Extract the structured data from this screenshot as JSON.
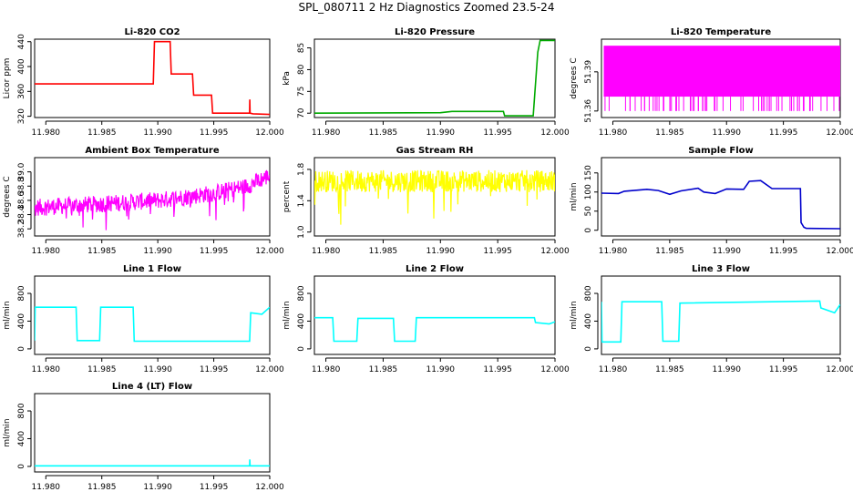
{
  "page": {
    "title": "SPL_080711  2 Hz Diagnostics Zoomed 23.5-24"
  },
  "chart_data": [
    {
      "type": "line",
      "title": "Li-820 CO2",
      "xlabel": "",
      "ylabel": "Licor ppm",
      "color": "#ff0000",
      "xlim": [
        11.979,
        12.0
      ],
      "ylim": [
        318,
        444
      ],
      "x_ticks": [
        "11.980",
        "11.985",
        "11.990",
        "11.995",
        "12.000"
      ],
      "y_ticks": [
        "320",
        "360",
        "400",
        "440"
      ],
      "series": [
        {
          "x": [
            11.979,
            11.9896,
            11.9897,
            11.9911,
            11.9912,
            11.9931,
            11.9932,
            11.9948,
            11.9949,
            11.9982,
            11.99822,
            11.99824,
            11.9985,
            12.0
          ],
          "y": [
            372,
            372,
            440,
            440,
            388,
            388,
            354,
            354,
            325,
            325,
            347,
            325,
            324,
            323
          ]
        }
      ]
    },
    {
      "type": "line",
      "title": "Li-820 Pressure",
      "xlabel": "",
      "ylabel": "kPa",
      "color": "#00aa00",
      "xlim": [
        11.979,
        12.0
      ],
      "ylim": [
        69,
        87
      ],
      "x_ticks": [
        "11.980",
        "11.985",
        "11.990",
        "11.995",
        "12.000"
      ],
      "y_ticks": [
        "70",
        "75",
        "80",
        "85"
      ],
      "series": [
        {
          "x": [
            11.979,
            11.99,
            11.991,
            11.9955,
            11.9956,
            11.9981,
            11.9985,
            11.9987,
            12.0
          ],
          "y": [
            70.0,
            70.1,
            70.4,
            70.4,
            69.4,
            69.4,
            84,
            86.7,
            86.7
          ]
        }
      ]
    },
    {
      "type": "line",
      "title": "Li-820 Temperature",
      "xlabel": "",
      "ylabel": "degrees C",
      "color": "#ff00ff",
      "xlim": [
        11.979,
        12.0
      ],
      "ylim": [
        51.355,
        51.415
      ],
      "x_ticks": [
        "11.980",
        "11.985",
        "11.990",
        "11.995",
        "12.000"
      ],
      "y_ticks": [
        "51.36",
        "51.39"
      ],
      "band": [
        51.36,
        51.41
      ]
    },
    {
      "type": "line",
      "title": "Ambient Box Temperature",
      "xlabel": "",
      "ylabel": "degrees C",
      "color": "#ff00ff",
      "xlim": [
        11.979,
        12.0
      ],
      "ylim": [
        38.1,
        39.2
      ],
      "x_ticks": [
        "11.980",
        "11.985",
        "11.990",
        "11.995",
        "12.000"
      ],
      "y_ticks": [
        "38.2",
        "38.4",
        "38.6",
        "38.8",
        "39.0"
      ],
      "series": [
        {
          "x": [
            11.979,
            11.985,
            11.99,
            11.995,
            11.998,
            12.0
          ],
          "y": [
            38.5,
            38.55,
            38.6,
            38.7,
            38.8,
            38.95
          ]
        }
      ]
    },
    {
      "type": "line",
      "title": "Gas Stream RH",
      "xlabel": "",
      "ylabel": "percent",
      "color": "#ffff00",
      "xlim": [
        11.979,
        12.0
      ],
      "ylim": [
        0.95,
        1.95
      ],
      "x_ticks": [
        "11.980",
        "11.985",
        "11.990",
        "11.995",
        "12.000"
      ],
      "y_ticks": [
        "1.0",
        "1.4",
        "1.8"
      ],
      "series": [
        {
          "x": [
            11.979,
            12.0
          ],
          "y": [
            1.65,
            1.65
          ]
        }
      ]
    },
    {
      "type": "line",
      "title": "Sample Flow",
      "xlabel": "",
      "ylabel": "ml/min",
      "color": "#0000cc",
      "xlim": [
        11.979,
        12.0
      ],
      "ylim": [
        -15,
        190
      ],
      "x_ticks": [
        "11.980",
        "11.985",
        "11.990",
        "11.995",
        "12.000"
      ],
      "y_ticks": [
        "0",
        "50",
        "100",
        "150"
      ],
      "series": [
        {
          "x": [
            11.979,
            11.9805,
            11.981,
            11.983,
            11.984,
            11.985,
            11.986,
            11.9875,
            11.988,
            11.989,
            11.99,
            11.9915,
            11.992,
            11.993,
            11.994,
            11.9965,
            11.99655,
            11.9968,
            11.997,
            12.0
          ],
          "y": [
            97,
            96,
            102,
            107,
            104,
            94,
            103,
            110,
            100,
            96,
            108,
            107,
            128,
            130,
            109,
            109,
            20,
            8,
            5,
            4
          ]
        }
      ]
    },
    {
      "type": "line",
      "title": "Line 1 Flow",
      "xlabel": "",
      "ylabel": "ml/min",
      "color": "#00ffff",
      "xlim": [
        11.979,
        12.0
      ],
      "ylim": [
        -80,
        1050
      ],
      "x_ticks": [
        "11.980",
        "11.985",
        "11.990",
        "11.995",
        "12.000"
      ],
      "y_ticks": [
        "0",
        "400",
        "800"
      ],
      "series": [
        {
          "x": [
            11.979,
            11.97905,
            11.9795,
            11.9827,
            11.9828,
            11.9848,
            11.9849,
            11.9878,
            11.9879,
            11.9982,
            11.9983,
            11.9993,
            12.0
          ],
          "y": [
            120,
            600,
            600,
            600,
            120,
            120,
            600,
            600,
            110,
            110,
            520,
            500,
            600
          ]
        }
      ]
    },
    {
      "type": "line",
      "title": "Line 2 Flow",
      "xlabel": "",
      "ylabel": "ml/min",
      "color": "#00ffff",
      "xlim": [
        11.979,
        12.0
      ],
      "ylim": [
        -80,
        1050
      ],
      "x_ticks": [
        "11.980",
        "11.985",
        "11.990",
        "11.995",
        "12.000"
      ],
      "y_ticks": [
        "0",
        "400",
        "800"
      ],
      "series": [
        {
          "x": [
            11.979,
            11.9806,
            11.9807,
            11.9827,
            11.9828,
            11.9859,
            11.986,
            11.9878,
            11.9879,
            11.9982,
            11.9983,
            11.9995,
            12.0
          ],
          "y": [
            450,
            450,
            110,
            110,
            440,
            440,
            110,
            110,
            450,
            450,
            380,
            360,
            390
          ]
        }
      ]
    },
    {
      "type": "line",
      "title": "Line 3 Flow",
      "xlabel": "",
      "ylabel": "ml/min",
      "color": "#00ffff",
      "xlim": [
        11.979,
        12.0
      ],
      "ylim": [
        -80,
        1050
      ],
      "x_ticks": [
        "11.980",
        "11.985",
        "11.990",
        "11.995",
        "12.000"
      ],
      "y_ticks": [
        "0",
        "400",
        "800"
      ],
      "series": [
        {
          "x": [
            11.979,
            11.97905,
            11.9796,
            11.9807,
            11.9808,
            11.9843,
            11.9844,
            11.9858,
            11.9859,
            11.9982,
            11.9983,
            11.9995,
            12.0
          ],
          "y": [
            680,
            100,
            100,
            100,
            680,
            680,
            110,
            110,
            660,
            690,
            590,
            520,
            640
          ]
        }
      ]
    },
    {
      "type": "line",
      "title": "Line 4 (LT) Flow",
      "xlabel": "",
      "ylabel": "ml/min",
      "color": "#00ffff",
      "xlim": [
        11.979,
        12.0
      ],
      "ylim": [
        -80,
        1050
      ],
      "x_ticks": [
        "11.980",
        "11.985",
        "11.990",
        "11.995",
        "12.000"
      ],
      "y_ticks": [
        "0",
        "400",
        "800"
      ],
      "series": [
        {
          "x": [
            11.979,
            11.9982,
            11.99822,
            11.99824,
            12.0
          ],
          "y": [
            8,
            8,
            100,
            8,
            8
          ]
        }
      ]
    }
  ]
}
